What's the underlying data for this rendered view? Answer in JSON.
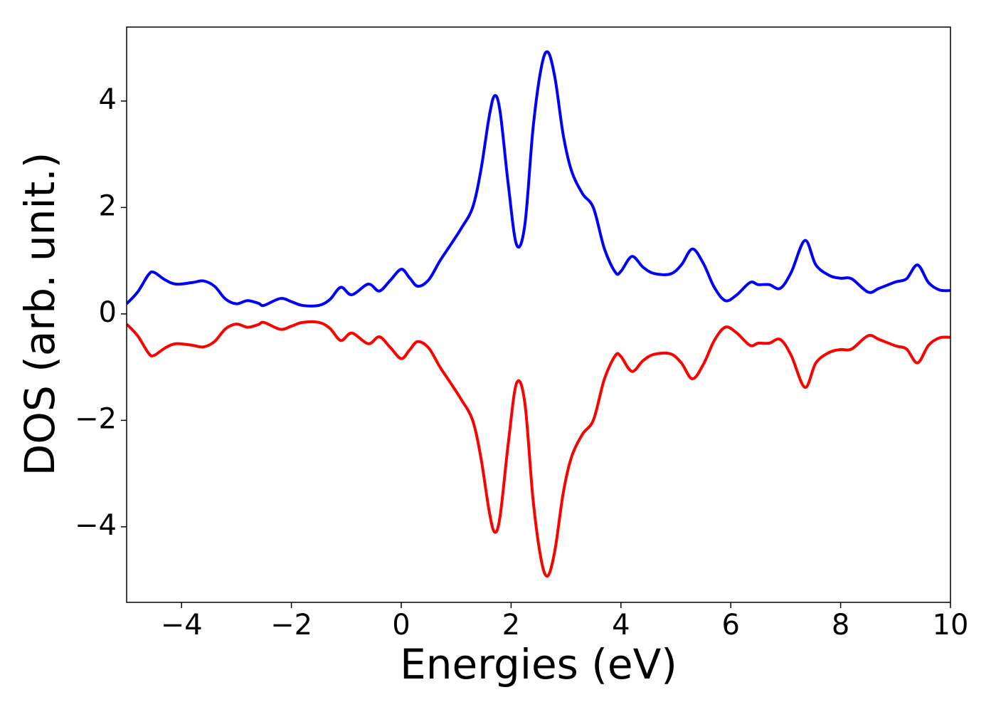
{
  "chart_data": {
    "type": "line",
    "xlabel": "Energies (eV)",
    "ylabel": "DOS (arb. unit.)",
    "x": [
      -5,
      -4.8,
      -4.6,
      -4.5,
      -4.3,
      -4.1,
      -3.8,
      -3.6,
      -3.4,
      -3.2,
      -3.0,
      -2.8,
      -2.6,
      -2.5,
      -2.2,
      -2.0,
      -1.8,
      -1.5,
      -1.3,
      -1.1,
      -0.9,
      -0.6,
      -0.4,
      -0.2,
      0.0,
      0.15,
      0.3,
      0.5,
      0.7,
      0.9,
      1.1,
      1.3,
      1.45,
      1.6,
      1.7,
      1.8,
      1.95,
      2.1,
      2.25,
      2.4,
      2.55,
      2.67,
      2.8,
      2.95,
      3.1,
      3.3,
      3.5,
      3.7,
      3.9,
      4.0,
      4.2,
      4.4,
      4.6,
      4.9,
      5.1,
      5.3,
      5.5,
      5.7,
      5.9,
      6.1,
      6.35,
      6.5,
      6.7,
      6.9,
      7.1,
      7.35,
      7.55,
      7.8,
      8.0,
      8.2,
      8.5,
      8.7,
      9.0,
      9.2,
      9.4,
      9.6,
      9.8,
      10
    ],
    "series": [
      {
        "color": "#0000ff",
        "values": [
          0.19,
          0.41,
          0.74,
          0.78,
          0.64,
          0.56,
          0.59,
          0.62,
          0.52,
          0.28,
          0.19,
          0.25,
          0.2,
          0.16,
          0.29,
          0.23,
          0.16,
          0.16,
          0.27,
          0.5,
          0.36,
          0.56,
          0.43,
          0.63,
          0.84,
          0.68,
          0.52,
          0.64,
          0.99,
          1.3,
          1.62,
          2.0,
          2.7,
          3.7,
          4.1,
          3.8,
          2.42,
          1.3,
          1.67,
          3.49,
          4.63,
          4.92,
          4.43,
          3.36,
          2.69,
          2.26,
          1.99,
          1.22,
          0.78,
          0.8,
          1.08,
          0.88,
          0.76,
          0.75,
          0.92,
          1.22,
          0.95,
          0.5,
          0.25,
          0.35,
          0.59,
          0.55,
          0.55,
          0.48,
          0.78,
          1.38,
          0.92,
          0.72,
          0.67,
          0.66,
          0.41,
          0.48,
          0.6,
          0.66,
          0.92,
          0.59,
          0.45,
          0.44
        ]
      },
      {
        "color": "#ff0000",
        "values": [
          -0.19,
          -0.41,
          -0.74,
          -0.78,
          -0.64,
          -0.56,
          -0.59,
          -0.62,
          -0.52,
          -0.28,
          -0.19,
          -0.25,
          -0.2,
          -0.16,
          -0.29,
          -0.23,
          -0.16,
          -0.16,
          -0.27,
          -0.5,
          -0.36,
          -0.56,
          -0.43,
          -0.63,
          -0.84,
          -0.68,
          -0.52,
          -0.64,
          -0.99,
          -1.3,
          -1.62,
          -2.0,
          -2.7,
          -3.7,
          -4.1,
          -3.8,
          -2.42,
          -1.3,
          -1.67,
          -3.49,
          -4.63,
          -4.92,
          -4.43,
          -3.36,
          -2.69,
          -2.26,
          -1.99,
          -1.22,
          -0.78,
          -0.8,
          -1.08,
          -0.88,
          -0.76,
          -0.75,
          -0.92,
          -1.22,
          -0.95,
          -0.5,
          -0.25,
          -0.35,
          -0.59,
          -0.55,
          -0.55,
          -0.48,
          -0.78,
          -1.38,
          -0.92,
          -0.72,
          -0.67,
          -0.66,
          -0.41,
          -0.48,
          -0.6,
          -0.66,
          -0.92,
          -0.59,
          -0.45,
          -0.44
        ]
      }
    ],
    "xlim": [
      -5,
      10
    ],
    "xticks": [
      {
        "value": -4,
        "label": "−4"
      },
      {
        "value": -2,
        "label": "−2"
      },
      0,
      2,
      4,
      6,
      8,
      10
    ],
    "ylim": [
      -5.42,
      5.39
    ],
    "yticks": [
      {
        "value": -4,
        "label": "−4"
      },
      {
        "value": -2,
        "label": "−2"
      },
      0,
      2,
      4
    ]
  }
}
